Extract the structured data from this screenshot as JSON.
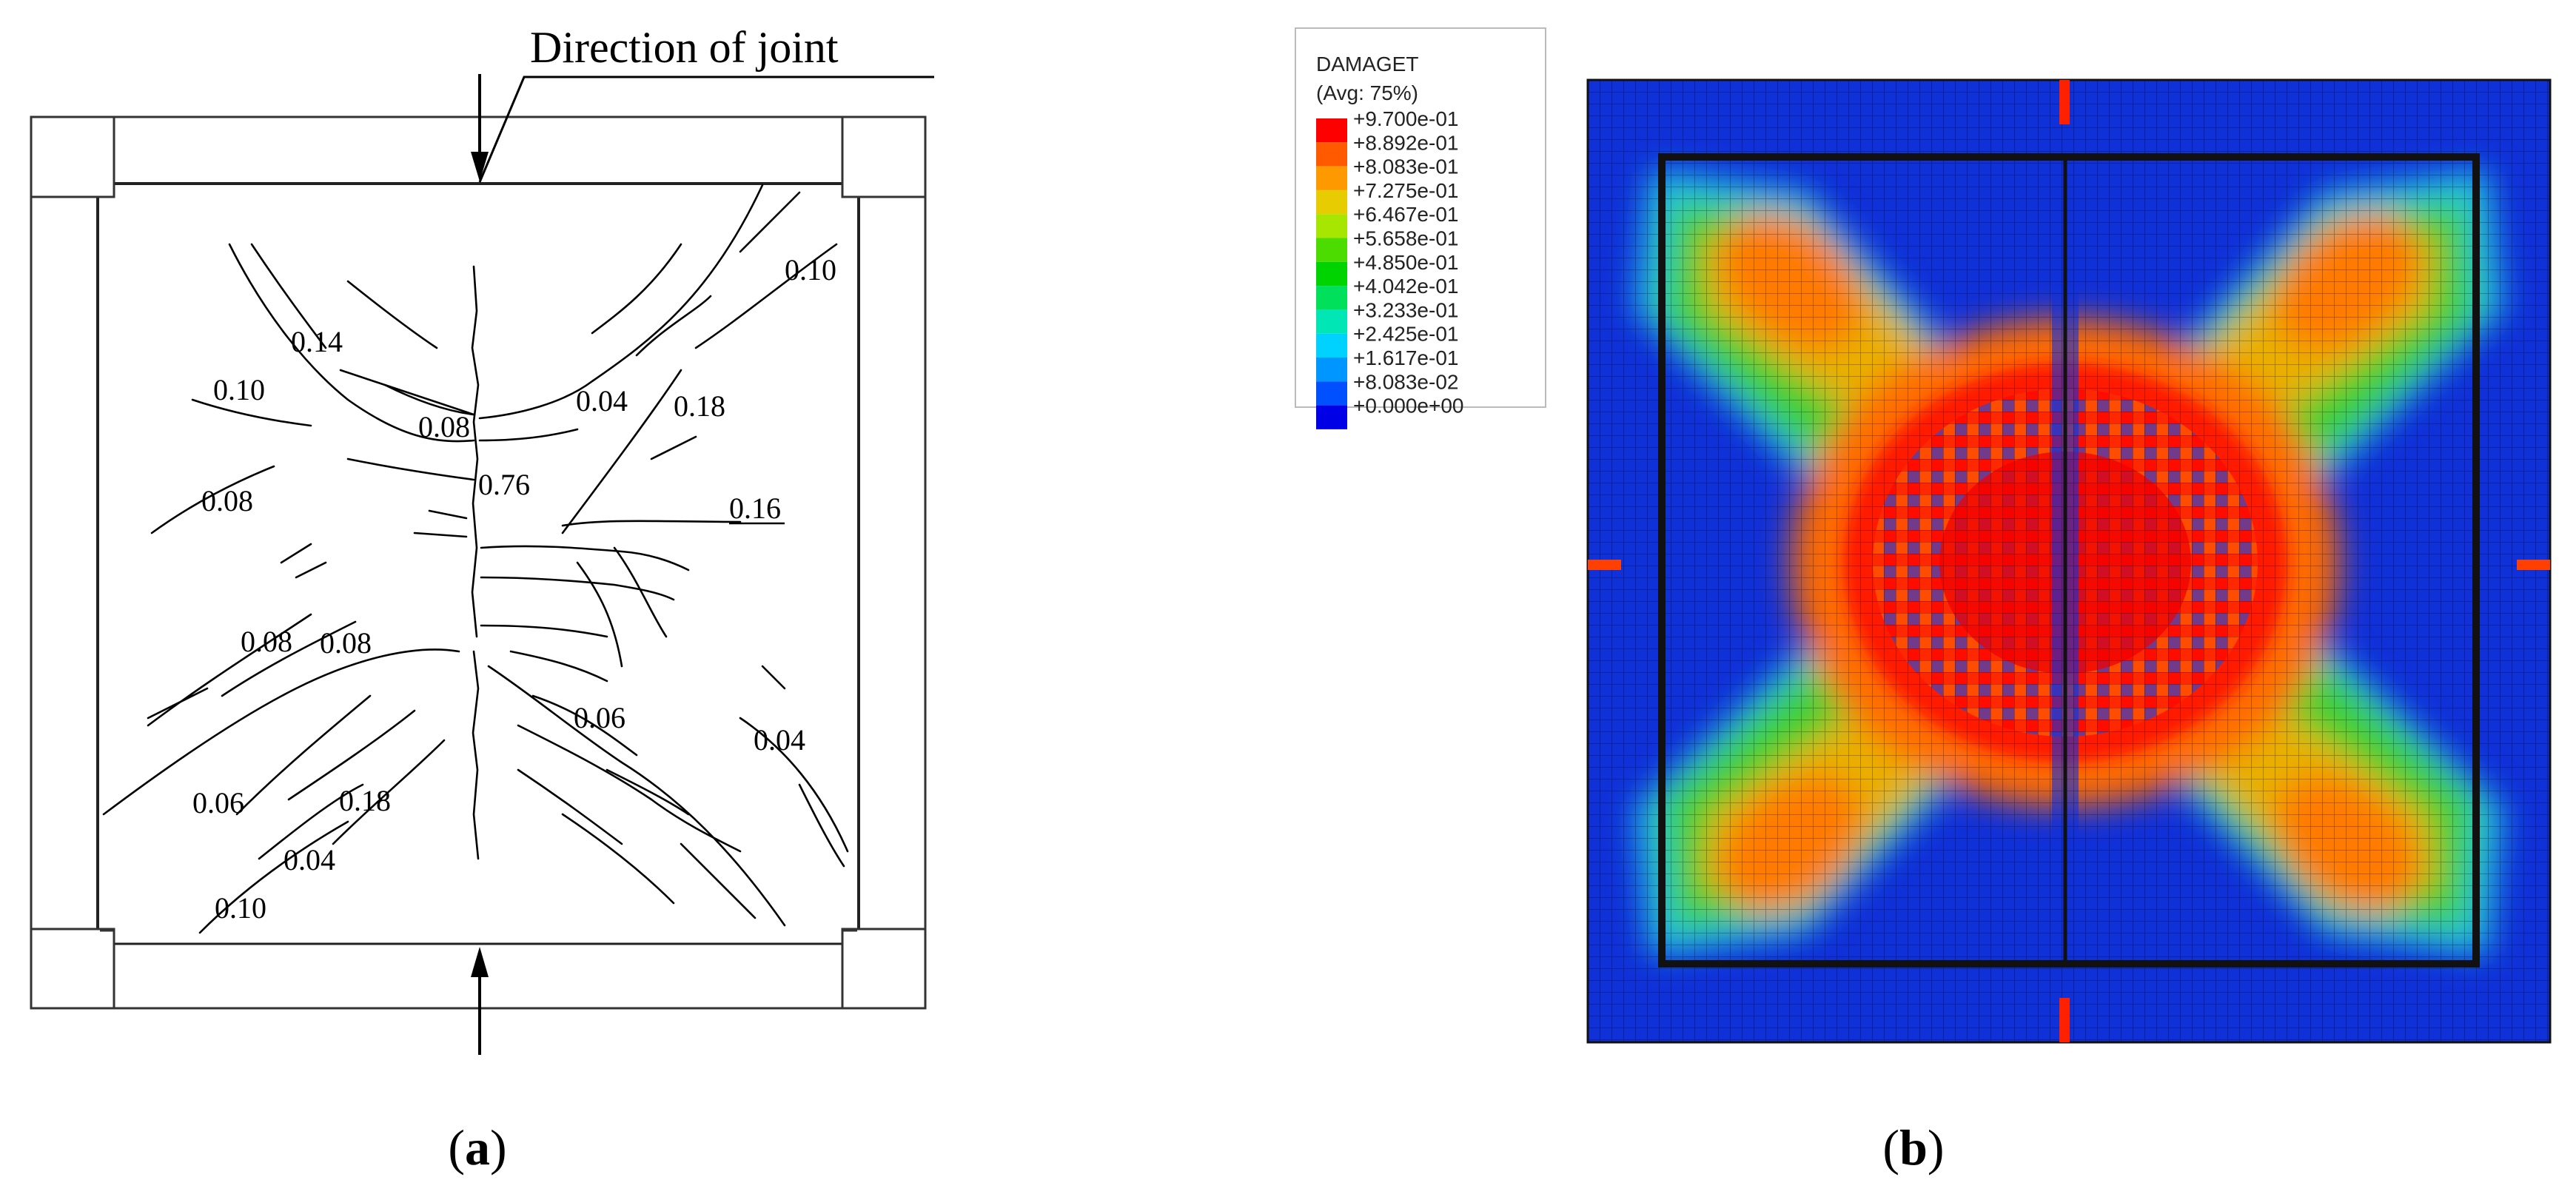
{
  "panel_a": {
    "label": "(a)",
    "label_letter": "a",
    "callout_text": "Direction of  joint",
    "crack_widths": [
      "0.10",
      "0.14",
      "0.10",
      "0.08",
      "0.76",
      "0.04",
      "0.18",
      "0.16",
      "0.08",
      "0.08",
      "0.08",
      "0.06",
      "0.06",
      "0.18",
      "0.04",
      "0.04",
      "0.10"
    ]
  },
  "panel_b": {
    "label": "(b)",
    "label_letter": "b",
    "legend": {
      "title": "DAMAGET",
      "subtitle": "(Avg: 75%)",
      "values": [
        "+9.700e-01",
        "+8.892e-01",
        "+8.083e-01",
        "+7.275e-01",
        "+6.467e-01",
        "+5.658e-01",
        "+4.850e-01",
        "+4.042e-01",
        "+3.233e-01",
        "+2.425e-01",
        "+1.617e-01",
        "+8.083e-02",
        "+0.000e+00"
      ],
      "colors": [
        "#ff0000",
        "#ff5a00",
        "#ff9900",
        "#e6cc00",
        "#a6e600",
        "#4ddc00",
        "#00d400",
        "#00e05a",
        "#00e6b4",
        "#00d2ff",
        "#0096ff",
        "#0050ff",
        "#0000e6"
      ]
    }
  }
}
